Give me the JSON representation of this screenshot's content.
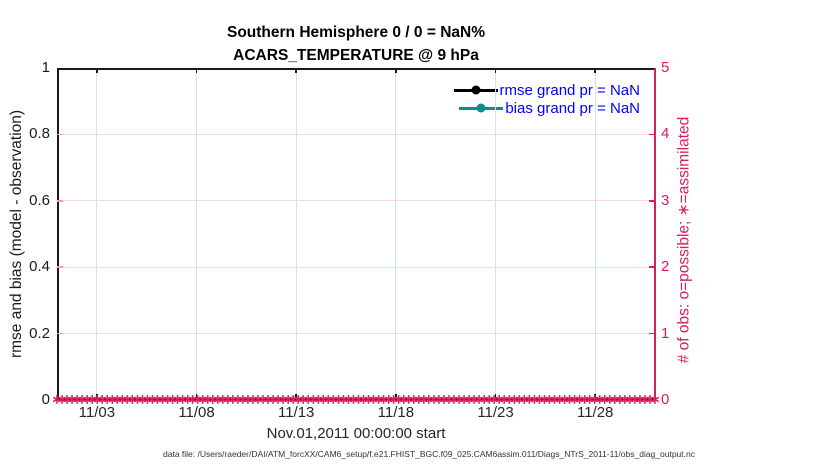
{
  "figure": {
    "title_line1": "Southern Hemisphere 0 / 0 = NaN%",
    "title_line2": "ACARS_TEMPERATURE @ 9 hPa",
    "footer": "data file: /Users/raeder/DAI/ATM_forcXX/CAM6_setup/f.e21.FHIST_BGC.f09_025.CAM6assim.011/Diags_NTrS_2011-11/obs_diag_output.nc"
  },
  "colors": {
    "axis_left": "#1a1a1a",
    "axis_right": "#D81F5E",
    "grid_vertical": "#dedede",
    "grid_horizontal": "#f6d7e2",
    "left_tick_mark": "#ed9db8",
    "tick_label": "#262626",
    "legend_text": "#0000ff",
    "rmse_line": "#000000",
    "bias_line": "#0f8b8b",
    "obs_marker": "#D81F5E"
  },
  "legend": {
    "entries": [
      {
        "label": "rmse grand pr = NaN",
        "color": "#000000"
      },
      {
        "label": "bias grand pr = NaN",
        "color": "#0f8b8b"
      }
    ]
  },
  "chart_data": {
    "type": "line",
    "title": "Southern Hemisphere 0 / 0 = NaN%",
    "subtitle": "ACARS_TEMPERATURE @ 9 hPa",
    "xlabel": "Nov.01,2011 00:00:00 start",
    "ylabel_left": "rmse and bias (model - observation)",
    "ylabel_right": "# of obs: o=possible; ∗=assimilated",
    "grid": true,
    "legend_position": "top-right-inside",
    "xlim_days": [
      0,
      30
    ],
    "xticks": [
      {
        "day": 2,
        "label": "11/03"
      },
      {
        "day": 7,
        "label": "11/08"
      },
      {
        "day": 12,
        "label": "11/13"
      },
      {
        "day": 17,
        "label": "11/18"
      },
      {
        "day": 22,
        "label": "11/23"
      },
      {
        "day": 27,
        "label": "11/28"
      }
    ],
    "ylim_left": [
      0,
      1
    ],
    "yticks_left": [
      0,
      0.2,
      0.4,
      0.6,
      0.8,
      1
    ],
    "ytick_labels_left": [
      "0",
      "0.2",
      "0.4",
      "0.6",
      "0.8",
      "1"
    ],
    "ylim_right": [
      0,
      5
    ],
    "yticks_right": [
      0,
      1,
      2,
      3,
      4,
      5
    ],
    "ytick_labels_right": [
      "0",
      "1",
      "2",
      "3",
      "4",
      "5"
    ],
    "series": [
      {
        "name": "rmse grand pr = NaN",
        "type": "line",
        "color": "#000000",
        "values_all": "NaN",
        "visible_points": 0
      },
      {
        "name": "bias grand pr = NaN",
        "type": "line",
        "color": "#0f8b8b",
        "values_all": "NaN",
        "visible_points": 0
      },
      {
        "name": "# of obs assimilated",
        "type": "scatter",
        "marker": "∗",
        "color": "#D81F5E",
        "constant_value": 0,
        "n_points": 120
      },
      {
        "name": "# of obs possible",
        "type": "scatter",
        "marker": "o",
        "color": "#D81F5E",
        "constant_value": 0,
        "n_points": 120
      }
    ]
  }
}
